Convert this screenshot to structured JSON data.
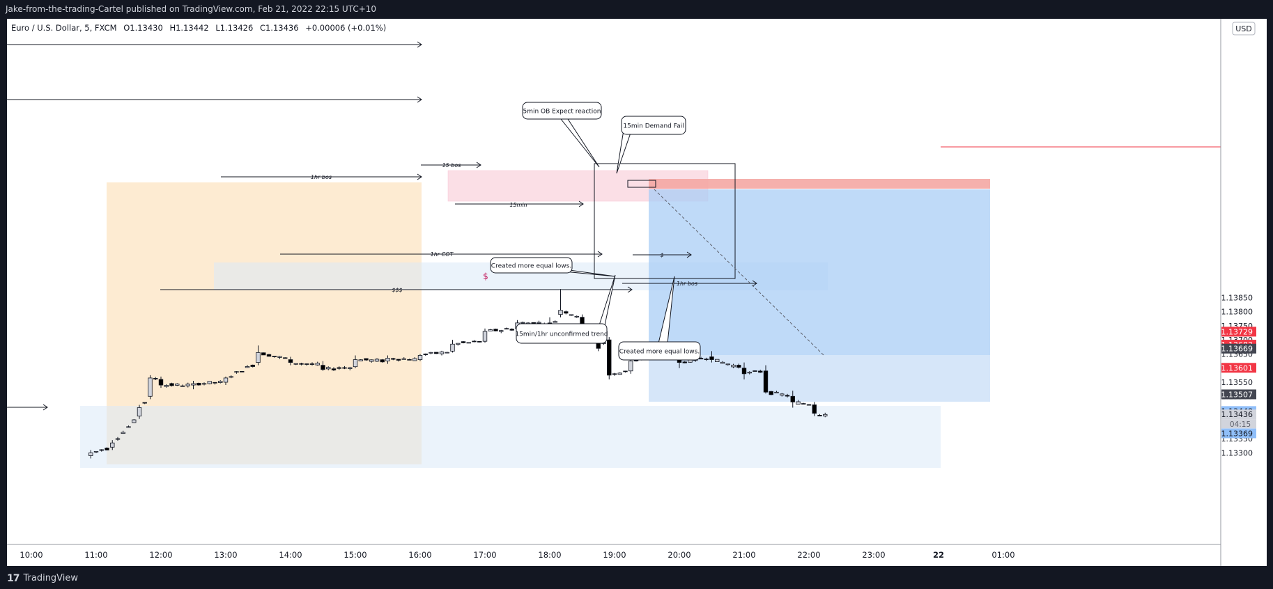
{
  "header": {
    "published": "Jake-from-the-trading-Cartel published on TradingView.com, Feb 21, 2022 22:15 UTC+10"
  },
  "legend": {
    "symbol": "Euro / U.S. Dollar, 5, FXCM",
    "open": "O1.13430",
    "high": "H1.13442",
    "low": "L1.13426",
    "close": "C1.13436",
    "change": "+0.00006 (+0.01%)"
  },
  "currency_button": "USD",
  "y_ticks": [
    {
      "label": "1.13850",
      "v": 1.1385
    },
    {
      "label": "1.13800",
      "v": 1.138
    },
    {
      "label": "1.13750",
      "v": 1.1375
    },
    {
      "label": "1.13700",
      "v": 1.137
    },
    {
      "label": "1.13650",
      "v": 1.1365
    },
    {
      "label": "1.13550",
      "v": 1.1355
    },
    {
      "label": "1.13500",
      "v": 1.135
    },
    {
      "label": "1.13400",
      "v": 1.134
    },
    {
      "label": "1.13350",
      "v": 1.1335
    },
    {
      "label": "1.13300",
      "v": 1.133
    }
  ],
  "x_ticks": [
    "10:00",
    "11:00",
    "12:00",
    "13:00",
    "14:00",
    "15:00",
    "16:00",
    "17:00",
    "18:00",
    "19:00",
    "20:00",
    "21:00",
    "22:00",
    "23:00",
    "22",
    "01:00"
  ],
  "price_labels": [
    {
      "label": "1.13729",
      "v": 1.13729,
      "bg": "#f23645",
      "fg": "#ffffff"
    },
    {
      "label": "1.13683",
      "v": 1.13683,
      "bg": "#f23645",
      "fg": "#ffffff"
    },
    {
      "label": "1.13669",
      "v": 1.13669,
      "bg": "#434651",
      "fg": "#ffffff"
    },
    {
      "label": "1.13601",
      "v": 1.13601,
      "bg": "#f23645",
      "fg": "#ffffff"
    },
    {
      "label": "1.13507",
      "v": 1.13507,
      "bg": "#434651",
      "fg": "#ffffff"
    },
    {
      "label": "1.13448",
      "v": 1.13448,
      "bg": "#90bff9",
      "fg": "#131722"
    },
    {
      "label": "1.13436",
      "v": 1.13436,
      "bg": "#d1d4dc",
      "fg": "#131722"
    },
    {
      "label": "1.13369",
      "v": 1.13369,
      "bg": "#90bff9",
      "fg": "#131722"
    }
  ],
  "countdown": "04:15",
  "annotations": {
    "a1hr_bos": "1hr bos",
    "a15_bos": "15 bos",
    "a15min": "15min",
    "a1hr_cot": "1hr COT",
    "a_sss": "$$$",
    "a_s_red": "$",
    "a_s_small": "$",
    "a1hr_bos2": "1hr bos",
    "callout_5min": "5min OB Expect reaction",
    "callout_15demand": "15min Demand Fail",
    "callout_equal1": "Created more equal lows.",
    "callout_unconfirmed": "15min/1hr unconfirmed trend",
    "callout_equal2": "Created more equal lows."
  },
  "footer": {
    "brand": "TradingView"
  },
  "colors": {
    "up": "#d1d4dc",
    "down": "#000000",
    "accent": "#f23645"
  },
  "chart_data": {
    "type": "candlestick",
    "symbol": "EURUSD",
    "timeframe": "5",
    "ylim": [
      1.1327,
      1.1389
    ],
    "x_range": [
      "10:00",
      "01:00"
    ],
    "candles_approx": [
      {
        "t": "10:55",
        "o": 1.1329,
        "h": 1.1331,
        "l": 1.1328,
        "c": 1.133
      },
      {
        "t": "11:15",
        "o": 1.1332,
        "h": 1.13345,
        "l": 1.1331,
        "c": 1.13335
      },
      {
        "t": "11:40",
        "o": 1.1343,
        "h": 1.1347,
        "l": 1.1342,
        "c": 1.1346
      },
      {
        "t": "11:50",
        "o": 1.135,
        "h": 1.13575,
        "l": 1.1349,
        "c": 1.13565
      },
      {
        "t": "12:00",
        "o": 1.1356,
        "h": 1.1357,
        "l": 1.1353,
        "c": 1.1354
      },
      {
        "t": "12:30",
        "o": 1.1354,
        "h": 1.13555,
        "l": 1.13525,
        "c": 1.13545
      },
      {
        "t": "13:00",
        "o": 1.1355,
        "h": 1.1357,
        "l": 1.1354,
        "c": 1.13565
      },
      {
        "t": "13:30",
        "o": 1.1362,
        "h": 1.1368,
        "l": 1.1361,
        "c": 1.13655
      },
      {
        "t": "14:00",
        "o": 1.1363,
        "h": 1.1364,
        "l": 1.1361,
        "c": 1.1362
      },
      {
        "t": "14:30",
        "o": 1.1361,
        "h": 1.13625,
        "l": 1.1359,
        "c": 1.13595
      },
      {
        "t": "15:00",
        "o": 1.13605,
        "h": 1.13645,
        "l": 1.136,
        "c": 1.1363
      },
      {
        "t": "15:30",
        "o": 1.13625,
        "h": 1.13645,
        "l": 1.13615,
        "c": 1.13635
      },
      {
        "t": "16:00",
        "o": 1.1363,
        "h": 1.1365,
        "l": 1.13625,
        "c": 1.13645
      },
      {
        "t": "16:30",
        "o": 1.1366,
        "h": 1.137,
        "l": 1.13655,
        "c": 1.13685
      },
      {
        "t": "17:00",
        "o": 1.13695,
        "h": 1.1374,
        "l": 1.1369,
        "c": 1.1373
      },
      {
        "t": "17:30",
        "o": 1.1374,
        "h": 1.1377,
        "l": 1.13725,
        "c": 1.1376
      },
      {
        "t": "18:00",
        "o": 1.1376,
        "h": 1.1378,
        "l": 1.1374,
        "c": 1.13745
      },
      {
        "t": "18:10",
        "o": 1.1379,
        "h": 1.1388,
        "l": 1.1378,
        "c": 1.13805
      },
      {
        "t": "18:30",
        "o": 1.1378,
        "h": 1.1379,
        "l": 1.1374,
        "c": 1.1375
      },
      {
        "t": "18:45",
        "o": 1.1372,
        "h": 1.1373,
        "l": 1.1366,
        "c": 1.1367
      },
      {
        "t": "18:55",
        "o": 1.137,
        "h": 1.1371,
        "l": 1.1356,
        "c": 1.13575
      },
      {
        "t": "19:15",
        "o": 1.1359,
        "h": 1.1364,
        "l": 1.1358,
        "c": 1.13625
      },
      {
        "t": "19:35",
        "o": 1.1364,
        "h": 1.13685,
        "l": 1.1363,
        "c": 1.13675
      },
      {
        "t": "20:00",
        "o": 1.1364,
        "h": 1.1366,
        "l": 1.136,
        "c": 1.1362
      },
      {
        "t": "20:30",
        "o": 1.1364,
        "h": 1.1366,
        "l": 1.1362,
        "c": 1.1363
      },
      {
        "t": "21:00",
        "o": 1.136,
        "h": 1.1362,
        "l": 1.1356,
        "c": 1.1358
      },
      {
        "t": "21:20",
        "o": 1.1359,
        "h": 1.1361,
        "l": 1.1351,
        "c": 1.13515
      },
      {
        "t": "21:45",
        "o": 1.135,
        "h": 1.1352,
        "l": 1.1346,
        "c": 1.1348
      },
      {
        "t": "22:05",
        "o": 1.1347,
        "h": 1.1348,
        "l": 1.1343,
        "c": 1.1344
      },
      {
        "t": "22:15",
        "o": 1.1343,
        "h": 1.13442,
        "l": 1.13426,
        "c": 1.13436
      }
    ]
  }
}
